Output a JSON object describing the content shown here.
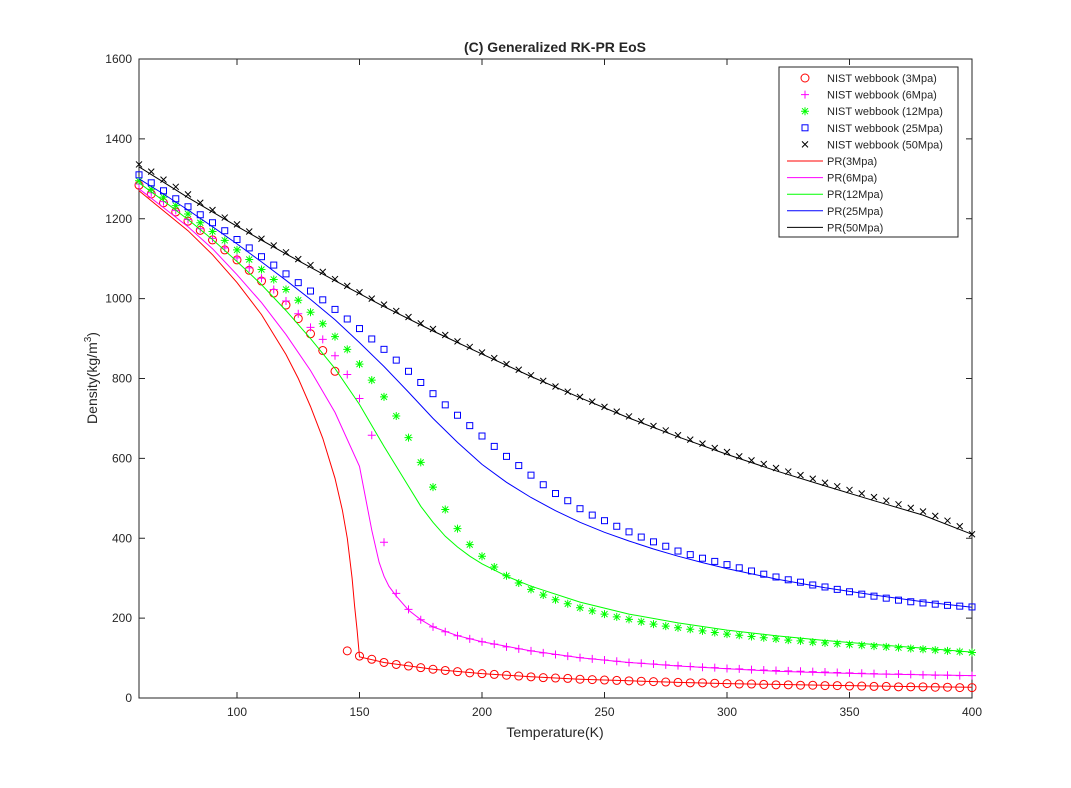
{
  "chart_data": {
    "type": "line",
    "title": "(C) Generalized RK-PR EoS",
    "xlabel": "Temperature(K)",
    "ylabel": "Density(kg/m",
    "ylabel_sup": "3",
    "ylabel_tail": ")",
    "xlim": [
      60,
      400
    ],
    "ylim": [
      0,
      1600
    ],
    "x_ticks": [
      100,
      150,
      200,
      250,
      300,
      350,
      400
    ],
    "y_ticks": [
      0,
      200,
      400,
      600,
      800,
      1000,
      1200,
      1400,
      1600
    ],
    "legend_position": "top-right",
    "grid": false,
    "series": [
      {
        "name": "NIST webbook (3Mpa)",
        "kind": "marker",
        "marker": "circle",
        "color": "#ff0000",
        "x": [
          60,
          65,
          70,
          75,
          80,
          85,
          90,
          95,
          100,
          105,
          110,
          115,
          120,
          125,
          130,
          135,
          140,
          145,
          150,
          155,
          160,
          165,
          170,
          175,
          180,
          185,
          190,
          195,
          200,
          205,
          210,
          215,
          220,
          225,
          230,
          235,
          240,
          245,
          250,
          255,
          260,
          265,
          270,
          275,
          280,
          285,
          290,
          295,
          300,
          305,
          310,
          315,
          320,
          325,
          330,
          335,
          340,
          345,
          350,
          355,
          360,
          365,
          370,
          375,
          380,
          385,
          390,
          395,
          400
        ],
        "y": [
          1284,
          1262,
          1240,
          1217,
          1194,
          1171,
          1147,
          1122,
          1097,
          1071,
          1044,
          1014,
          984,
          950,
          912,
          870,
          818,
          118,
          105,
          97,
          89,
          84,
          80,
          76,
          72,
          69,
          66,
          63,
          61,
          59,
          57,
          55,
          53,
          51,
          50,
          49,
          47,
          46,
          45,
          44,
          43,
          42,
          41,
          40,
          39,
          38,
          38,
          37,
          36,
          35,
          35,
          34,
          33,
          33,
          32,
          32,
          31,
          31,
          30,
          30,
          29,
          29,
          28,
          28,
          28,
          27,
          27,
          26,
          26
        ]
      },
      {
        "name": "NIST webbook (6Mpa)",
        "kind": "marker",
        "marker": "plus",
        "color": "#ff00ff",
        "x": [
          60,
          65,
          70,
          75,
          80,
          85,
          90,
          95,
          100,
          105,
          110,
          115,
          120,
          125,
          130,
          135,
          140,
          145,
          150,
          155,
          160,
          165,
          170,
          175,
          180,
          185,
          190,
          195,
          200,
          205,
          210,
          215,
          220,
          225,
          230,
          235,
          240,
          245,
          250,
          255,
          260,
          265,
          270,
          275,
          280,
          285,
          290,
          295,
          300,
          305,
          310,
          315,
          320,
          325,
          330,
          335,
          340,
          345,
          350,
          355,
          360,
          365,
          370,
          375,
          380,
          385,
          390,
          395,
          400
        ],
        "y": [
          1287,
          1265,
          1243,
          1221,
          1198,
          1175,
          1151,
          1127,
          1102,
          1077,
          1051,
          1023,
          994,
          962,
          928,
          898,
          857,
          810,
          750,
          658,
          390,
          262,
          222,
          196,
          178,
          166,
          156,
          148,
          141,
          135,
          128,
          123,
          118,
          113,
          109,
          105,
          101,
          98,
          95,
          92,
          89,
          87,
          85,
          83,
          81,
          79,
          77,
          76,
          74,
          73,
          71,
          70,
          69,
          68,
          67,
          66,
          65,
          64,
          63,
          62,
          61,
          60,
          60,
          59,
          58,
          57,
          57,
          56,
          56
        ]
      },
      {
        "name": "NIST webbook (12Mpa)",
        "kind": "marker",
        "marker": "star",
        "color": "#00ff00",
        "x": [
          60,
          65,
          70,
          75,
          80,
          85,
          90,
          95,
          100,
          105,
          110,
          115,
          120,
          125,
          130,
          135,
          140,
          145,
          150,
          155,
          160,
          165,
          170,
          175,
          180,
          185,
          190,
          195,
          200,
          205,
          210,
          215,
          220,
          225,
          230,
          235,
          240,
          245,
          250,
          255,
          260,
          265,
          270,
          275,
          280,
          285,
          290,
          295,
          300,
          305,
          310,
          315,
          320,
          325,
          330,
          335,
          340,
          345,
          350,
          355,
          360,
          365,
          370,
          375,
          380,
          385,
          390,
          395,
          400
        ],
        "y": [
          1295,
          1274,
          1254,
          1233,
          1212,
          1190,
          1168,
          1146,
          1122,
          1098,
          1073,
          1048,
          1023,
          996,
          966,
          937,
          905,
          873,
          836,
          796,
          754,
          706,
          652,
          590,
          528,
          472,
          424,
          384,
          355,
          328,
          306,
          288,
          272,
          258,
          246,
          236,
          226,
          218,
          210,
          203,
          197,
          191,
          185,
          180,
          176,
          172,
          168,
          164,
          160,
          157,
          154,
          151,
          148,
          145,
          143,
          140,
          138,
          136,
          134,
          132,
          130,
          128,
          126,
          124,
          122,
          120,
          118,
          116,
          114
        ]
      },
      {
        "name": "NIST webbook (25Mpa)",
        "kind": "marker",
        "marker": "square",
        "color": "#0000ff",
        "x": [
          60,
          65,
          70,
          75,
          80,
          85,
          90,
          95,
          100,
          105,
          110,
          115,
          120,
          125,
          130,
          135,
          140,
          145,
          150,
          155,
          160,
          165,
          170,
          175,
          180,
          185,
          190,
          195,
          200,
          205,
          210,
          215,
          220,
          225,
          230,
          235,
          240,
          245,
          250,
          255,
          260,
          265,
          270,
          275,
          280,
          285,
          290,
          295,
          300,
          305,
          310,
          315,
          320,
          325,
          330,
          335,
          340,
          345,
          350,
          355,
          360,
          365,
          370,
          375,
          380,
          385,
          390,
          395,
          400
        ],
        "y": [
          1310,
          1290,
          1270,
          1250,
          1230,
          1210,
          1190,
          1170,
          1148,
          1127,
          1105,
          1084,
          1062,
          1040,
          1019,
          997,
          973,
          949,
          925,
          899,
          873,
          846,
          818,
          790,
          762,
          734,
          708,
          682,
          656,
          630,
          605,
          582,
          558,
          534,
          512,
          494,
          474,
          458,
          444,
          430,
          416,
          403,
          391,
          380,
          368,
          359,
          350,
          342,
          334,
          326,
          318,
          310,
          303,
          296,
          290,
          283,
          278,
          272,
          266,
          260,
          255,
          250,
          245,
          241,
          238,
          235,
          232,
          230,
          228
        ]
      },
      {
        "name": "NIST webbook (50Mpa)",
        "kind": "marker",
        "marker": "cross",
        "color": "#000000",
        "x": [
          60,
          65,
          70,
          75,
          80,
          85,
          90,
          95,
          100,
          105,
          110,
          115,
          120,
          125,
          130,
          135,
          140,
          145,
          150,
          155,
          160,
          165,
          170,
          175,
          180,
          185,
          190,
          195,
          200,
          205,
          210,
          215,
          220,
          225,
          230,
          235,
          240,
          245,
          250,
          255,
          260,
          265,
          270,
          275,
          280,
          285,
          290,
          295,
          300,
          305,
          310,
          315,
          320,
          325,
          330,
          335,
          340,
          345,
          350,
          355,
          360,
          365,
          370,
          375,
          380,
          385,
          390,
          395,
          400
        ],
        "y": [
          1336,
          1318,
          1298,
          1280,
          1261,
          1240,
          1222,
          1203,
          1186,
          1168,
          1150,
          1133,
          1116,
          1099,
          1084,
          1067,
          1049,
          1032,
          1016,
          1000,
          985,
          969,
          954,
          938,
          924,
          909,
          893,
          879,
          865,
          851,
          836,
          822,
          808,
          794,
          780,
          767,
          754,
          742,
          729,
          717,
          705,
          693,
          681,
          670,
          658,
          647,
          637,
          626,
          616,
          605,
          595,
          586,
          576,
          567,
          558,
          549,
          539,
          530,
          521,
          512,
          503,
          494,
          485,
          476,
          467,
          456,
          444,
          430,
          410
        ]
      },
      {
        "name": "PR(3Mpa)",
        "kind": "line",
        "color": "#ff0000",
        "x": [
          60,
          70,
          80,
          90,
          100,
          110,
          120,
          125,
          130,
          135,
          140,
          143,
          145,
          146,
          147,
          148,
          149,
          150,
          160,
          180,
          200,
          220,
          240,
          260,
          280,
          300,
          320,
          340,
          360,
          380,
          400
        ],
        "y": [
          1270,
          1220,
          1170,
          1110,
          1040,
          960,
          860,
          800,
          730,
          650,
          550,
          470,
          400,
          350,
          300,
          230,
          170,
          103,
          89,
          72,
          61,
          53,
          47,
          43,
          39,
          36,
          34,
          32,
          30,
          28,
          27
        ]
      },
      {
        "name": "PR(6Mpa)",
        "kind": "line",
        "color": "#ff00ff",
        "x": [
          60,
          70,
          80,
          90,
          100,
          110,
          120,
          130,
          140,
          150,
          155,
          158,
          160,
          162,
          165,
          170,
          175,
          180,
          190,
          200,
          220,
          240,
          260,
          280,
          300,
          320,
          340,
          360,
          380,
          400
        ],
        "y": [
          1275,
          1228,
          1180,
          1125,
          1060,
          990,
          910,
          820,
          715,
          580,
          420,
          340,
          305,
          280,
          255,
          220,
          196,
          178,
          156,
          141,
          118,
          101,
          89,
          80,
          73,
          67,
          63,
          60,
          58,
          56
        ]
      },
      {
        "name": "PR(12Mpa)",
        "kind": "line",
        "color": "#00ff00",
        "x": [
          60,
          70,
          80,
          90,
          100,
          110,
          120,
          130,
          140,
          150,
          160,
          165,
          170,
          175,
          180,
          185,
          190,
          195,
          200,
          210,
          220,
          240,
          260,
          280,
          300,
          320,
          340,
          360,
          380,
          400
        ],
        "y": [
          1290,
          1245,
          1198,
          1148,
          1093,
          1035,
          970,
          900,
          825,
          735,
          630,
          580,
          530,
          480,
          440,
          405,
          378,
          355,
          336,
          305,
          280,
          240,
          210,
          188,
          170,
          156,
          144,
          134,
          125,
          115
        ]
      },
      {
        "name": "PR(25Mpa)",
        "kind": "line",
        "color": "#0000ff",
        "x": [
          60,
          70,
          80,
          90,
          100,
          110,
          120,
          130,
          140,
          150,
          160,
          170,
          180,
          190,
          200,
          210,
          220,
          230,
          240,
          250,
          260,
          270,
          280,
          290,
          300,
          320,
          340,
          360,
          380,
          400
        ],
        "y": [
          1300,
          1262,
          1222,
          1180,
          1137,
          1092,
          1046,
          998,
          947,
          890,
          830,
          766,
          700,
          640,
          585,
          540,
          502,
          469,
          440,
          415,
          393,
          373,
          355,
          339,
          324,
          298,
          276,
          258,
          241,
          227
        ]
      },
      {
        "name": "PR(50Mpa)",
        "kind": "line",
        "color": "#000000",
        "x": [
          60,
          80,
          100,
          120,
          140,
          160,
          180,
          200,
          220,
          240,
          260,
          280,
          300,
          320,
          340,
          360,
          380,
          400
        ],
        "y": [
          1330,
          1253,
          1181,
          1112,
          1045,
          980,
          919,
          861,
          805,
          752,
          701,
          654,
          610,
          569,
          531,
          494,
          458,
          410
        ]
      }
    ]
  }
}
